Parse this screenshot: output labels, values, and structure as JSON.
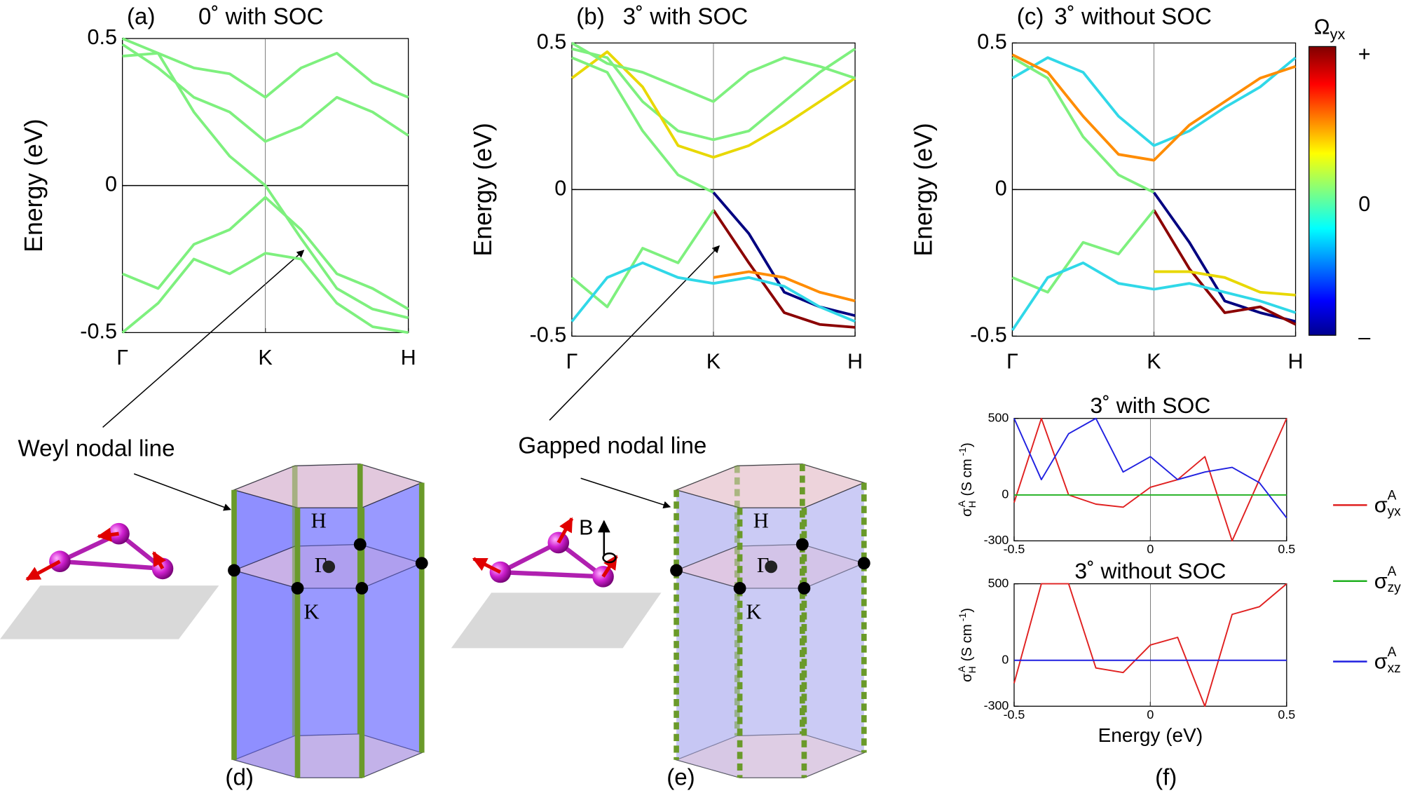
{
  "chart_data": [
    {
      "type": "line",
      "label": "(a)",
      "title": "0˚ with SOC",
      "ylabel": "Energy (eV)",
      "x": [
        0,
        0.25,
        0.5,
        0.75,
        1,
        1.25,
        1.5,
        1.75,
        2
      ],
      "xlim": [
        0,
        2
      ],
      "xticks": [
        {
          "value": 0,
          "label": "Γ"
        },
        {
          "value": 1,
          "label": "K"
        },
        {
          "value": 2,
          "label": "H"
        }
      ],
      "ylim": [
        -0.5,
        0.5
      ],
      "yticks": [
        0.5,
        0,
        -0.5
      ],
      "series": [
        {
          "color": "#7ef07e",
          "values": [
            0.44,
            0.45,
            0.25,
            0.1,
            0.0,
            -0.18,
            -0.35,
            -0.42,
            -0.45
          ]
        },
        {
          "color": "#7ef07e",
          "values": [
            0.48,
            0.4,
            0.3,
            0.25,
            0.15,
            0.2,
            0.3,
            0.25,
            0.17
          ]
        },
        {
          "color": "#7ef07e",
          "values": [
            0.5,
            0.45,
            0.4,
            0.38,
            0.3,
            0.4,
            0.45,
            0.35,
            0.3
          ]
        },
        {
          "color": "#7ef07e",
          "values": [
            -0.3,
            -0.35,
            -0.2,
            -0.15,
            -0.04,
            -0.15,
            -0.3,
            -0.35,
            -0.42
          ]
        },
        {
          "color": "#7ef07e",
          "values": [
            -0.5,
            -0.4,
            -0.25,
            -0.3,
            -0.23,
            -0.25,
            -0.4,
            -0.48,
            -0.5
          ]
        }
      ]
    },
    {
      "type": "line",
      "label": "(b)",
      "title": "3˚ with SOC",
      "ylabel": "Energy (eV)",
      "x": [
        0,
        0.25,
        0.5,
        0.75,
        1,
        1.25,
        1.5,
        1.75,
        2
      ],
      "xlim": [
        0,
        2
      ],
      "xticks": [
        {
          "value": 0,
          "label": "Γ"
        },
        {
          "value": 1,
          "label": "K"
        },
        {
          "value": 2,
          "label": "H"
        }
      ],
      "ylim": [
        -0.5,
        0.5
      ],
      "yticks": [
        0.5,
        0,
        -0.5
      ],
      "series": [
        {
          "color": "#7ef07e",
          "values": [
            0.48,
            0.45,
            0.3,
            0.2,
            0.17,
            0.2,
            0.3,
            0.4,
            0.48
          ]
        },
        {
          "color": "#e8d800",
          "values": [
            0.38,
            0.47,
            0.35,
            0.15,
            0.11,
            0.15,
            0.22,
            0.3,
            0.38
          ]
        },
        {
          "color": "#7ef07e",
          "values": [
            0.5,
            0.43,
            0.4,
            0.35,
            0.3,
            0.4,
            0.45,
            0.42,
            0.38
          ]
        },
        {
          "color": "#7ef07e",
          "values": [
            0.45,
            0.4,
            0.2,
            0.05,
            -0.01,
            null,
            null,
            null,
            null
          ]
        },
        {
          "color": "#000080",
          "values": [
            null,
            null,
            null,
            null,
            -0.01,
            -0.15,
            -0.35,
            -0.4,
            -0.43
          ]
        },
        {
          "color": "#8b0000",
          "values": [
            null,
            null,
            null,
            null,
            -0.07,
            -0.25,
            -0.42,
            -0.46,
            -0.47
          ]
        },
        {
          "color": "#7ef07e",
          "values": [
            -0.3,
            -0.4,
            -0.2,
            -0.25,
            -0.07,
            null,
            null,
            null,
            null
          ]
        },
        {
          "color": "#ff8c00",
          "values": [
            null,
            null,
            null,
            null,
            -0.3,
            -0.28,
            -0.3,
            -0.35,
            -0.38
          ]
        },
        {
          "color": "#30d8e8",
          "values": [
            -0.45,
            -0.3,
            -0.25,
            -0.3,
            -0.32,
            -0.3,
            -0.33,
            -0.4,
            -0.45
          ]
        }
      ]
    },
    {
      "type": "line",
      "label": "(c)",
      "title": "3˚ without SOC",
      "ylabel": "Energy (eV)",
      "x": [
        0,
        0.25,
        0.5,
        0.75,
        1,
        1.25,
        1.5,
        1.75,
        2
      ],
      "xlim": [
        0,
        2
      ],
      "xticks": [
        {
          "value": 0,
          "label": "Γ"
        },
        {
          "value": 1,
          "label": "K"
        },
        {
          "value": 2,
          "label": "H"
        }
      ],
      "ylim": [
        -0.5,
        0.5
      ],
      "yticks": [
        0.5,
        0,
        -0.5
      ],
      "series": [
        {
          "color": "#30d8e8",
          "values": [
            0.38,
            0.45,
            0.4,
            0.25,
            0.15,
            0.2,
            0.28,
            0.35,
            0.45
          ]
        },
        {
          "color": "#ff8c00",
          "values": [
            0.46,
            0.4,
            0.25,
            0.12,
            0.1,
            0.22,
            0.3,
            0.38,
            0.42
          ]
        },
        {
          "color": "#7ef07e",
          "values": [
            0.45,
            0.38,
            0.18,
            0.05,
            -0.01,
            null,
            null,
            null,
            null
          ]
        },
        {
          "color": "#000080",
          "values": [
            null,
            null,
            null,
            null,
            -0.01,
            -0.18,
            -0.38,
            -0.42,
            -0.45
          ]
        },
        {
          "color": "#8b0000",
          "values": [
            null,
            null,
            null,
            null,
            -0.07,
            -0.27,
            -0.42,
            -0.4,
            -0.46
          ]
        },
        {
          "color": "#7ef07e",
          "values": [
            -0.3,
            -0.35,
            -0.18,
            -0.22,
            -0.07,
            null,
            null,
            null,
            null
          ]
        },
        {
          "color": "#e8d800",
          "values": [
            null,
            null,
            null,
            null,
            -0.28,
            -0.28,
            -0.3,
            -0.35,
            -0.36
          ]
        },
        {
          "color": "#30d8e8",
          "values": [
            -0.48,
            -0.3,
            -0.25,
            -0.32,
            -0.34,
            -0.32,
            -0.35,
            -0.38,
            -0.42
          ]
        }
      ]
    },
    {
      "type": "line",
      "title": "3˚ with SOC",
      "ylabel": {
        "symbol": "σ",
        "sub": "H",
        "sup": "A",
        "unit": "(S cm",
        "unit_sup": "-1",
        "close": ")"
      },
      "x": [
        -0.5,
        -0.4,
        -0.3,
        -0.2,
        -0.1,
        0,
        0.1,
        0.2,
        0.3,
        0.4,
        0.5
      ],
      "xlim": [
        -0.5,
        0.5
      ],
      "xticks": [
        -0.5,
        0,
        0.5
      ],
      "ylim": [
        -300,
        500
      ],
      "yticks": [
        500,
        0,
        -300
      ],
      "series": [
        {
          "name": "σ",
          "name_sup": "A",
          "name_sub": "yx",
          "color": "#e02020",
          "values": [
            -50,
            500,
            0,
            -60,
            -80,
            50,
            100,
            250,
            -300,
            100,
            500
          ]
        },
        {
          "name": "σ",
          "name_sup": "A",
          "name_sub": "zy",
          "color": "#20b020",
          "values": [
            0,
            0,
            0,
            0,
            0,
            0,
            0,
            0,
            0,
            0,
            0
          ]
        },
        {
          "name": "σ",
          "name_sup": "A",
          "name_sub": "xz",
          "color": "#2020e0",
          "values": [
            500,
            100,
            400,
            500,
            150,
            250,
            100,
            150,
            180,
            80,
            -150
          ]
        }
      ]
    },
    {
      "type": "line",
      "title": "3˚ without SOC",
      "xlabel": "Energy (eV)",
      "ylabel": {
        "symbol": "σ",
        "sub": "H",
        "sup": "A",
        "unit": "(S cm",
        "unit_sup": "-1",
        "close": ")"
      },
      "x": [
        -0.5,
        -0.4,
        -0.3,
        -0.2,
        -0.1,
        0,
        0.1,
        0.2,
        0.3,
        0.4,
        0.5
      ],
      "xlim": [
        -0.5,
        0.5
      ],
      "xticks": [
        -0.5,
        0,
        0.5
      ],
      "ylim": [
        -300,
        500
      ],
      "yticks": [
        500,
        0,
        -300
      ],
      "series": [
        {
          "color": "#e02020",
          "values": [
            -150,
            500,
            500,
            -50,
            -80,
            100,
            150,
            -300,
            300,
            350,
            500
          ]
        },
        {
          "color": "#2020e0",
          "values": [
            0,
            0,
            0,
            0,
            0,
            0,
            0,
            0,
            0,
            0,
            0
          ]
        }
      ]
    }
  ],
  "figure": {
    "colorbar": {
      "symbol": "Ω",
      "sub": "yx",
      "ticks": [
        "+",
        "0",
        "–"
      ]
    },
    "panel_labels": [
      "(d)",
      "(e)",
      "(f)"
    ],
    "diagram_d": {
      "caption": "Weyl nodal line",
      "points": [
        "H",
        "Γ",
        "K"
      ]
    },
    "diagram_e": {
      "caption": "Gapped nodal line",
      "points": [
        "H",
        "Γ",
        "K"
      ],
      "field": "B"
    }
  }
}
